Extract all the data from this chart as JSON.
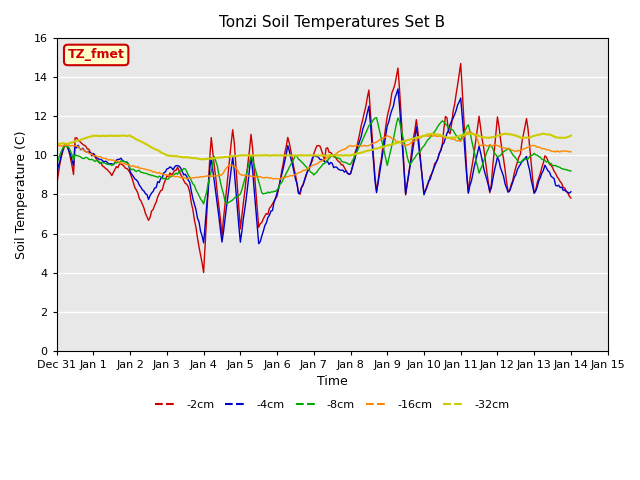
{
  "title": "Tonzi Soil Temperatures Set B",
  "xlabel": "Time",
  "ylabel": "Soil Temperature (C)",
  "ylim": [
    0,
    16
  ],
  "xlim": [
    0,
    15
  ],
  "yticks": [
    0,
    2,
    4,
    6,
    8,
    10,
    12,
    14,
    16
  ],
  "xtick_positions": [
    0,
    1,
    2,
    3,
    4,
    5,
    6,
    7,
    8,
    9,
    10,
    11,
    12,
    13,
    14,
    15
  ],
  "x_labels": [
    "Dec 31",
    "Jan 1",
    "Jan 2",
    "Jan 3",
    "Jan 4",
    "Jan 5",
    "Jan 6",
    "Jan 7",
    "Jan 8",
    "Jan 9",
    "Jan 10",
    "Jan 11",
    "Jan 12",
    "Jan 13",
    "Jan 14",
    "Jan 15"
  ],
  "bg_color": "#e8e8e8",
  "annotation_text": "TZ_fmet",
  "annotation_bg": "#ffffcc",
  "annotation_border": "#cc0000",
  "annotation_text_color": "#cc0000",
  "series_colors": {
    "-2cm": "#cc0000",
    "-4cm": "#0000cc",
    "-8cm": "#00aa00",
    "-16cm": "#ff8800",
    "-32cm": "#cccc00"
  },
  "num_points": 337,
  "legend_labels": [
    "-2cm",
    "-4cm",
    "-8cm",
    "-16cm",
    "-32cm"
  ]
}
